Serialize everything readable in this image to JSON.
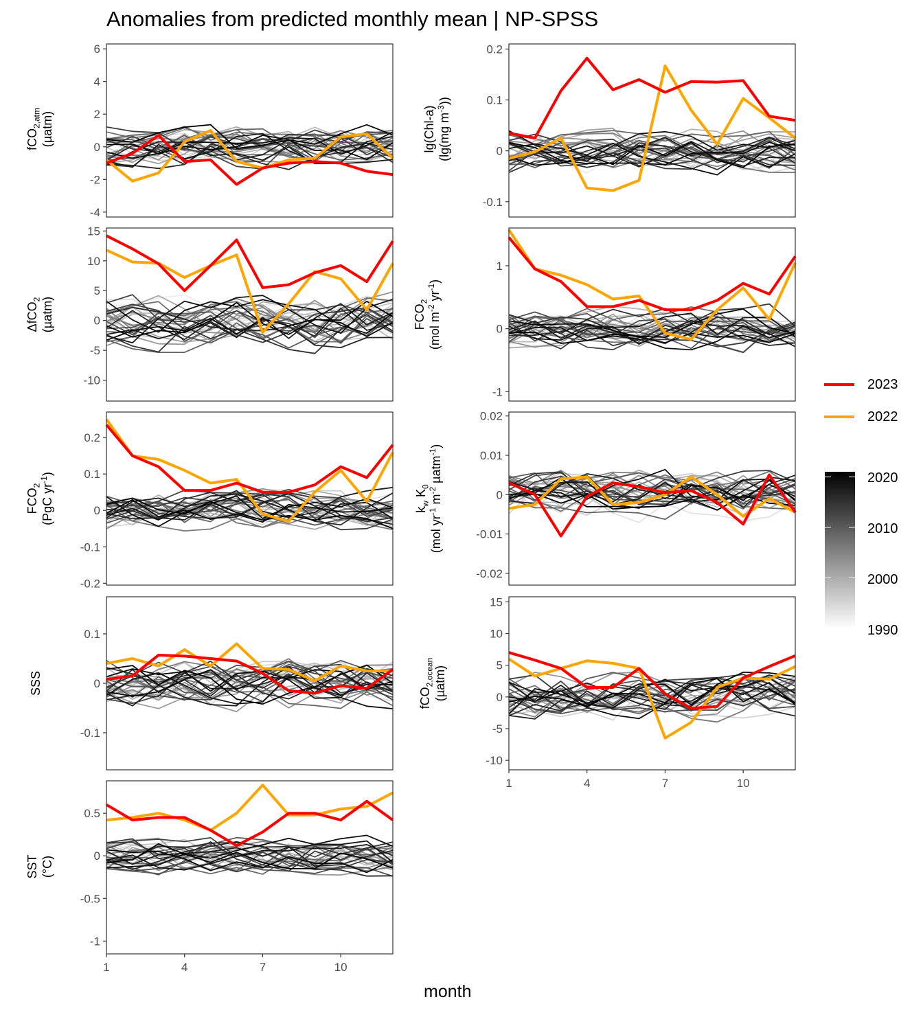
{
  "title": "Anomalies from predicted monthly mean | NP-SPSS",
  "x_title": "month",
  "x_ticks": [
    1,
    4,
    7,
    10
  ],
  "legend": {
    "highlight": [
      {
        "label": "2023",
        "color": "#ff0000"
      },
      {
        "label": "2022",
        "color": "#ffa500"
      }
    ],
    "colorbar": {
      "ticks": [
        "2020",
        "2010",
        "2000",
        "1990"
      ],
      "range": [
        1990,
        2021
      ],
      "low_color": "#ffffff",
      "high_color": "#000000"
    }
  },
  "chart_data": [
    {
      "id": "fco2_atm",
      "type": "line",
      "ylim": [
        -4.3,
        6.3
      ],
      "yticks": [
        6,
        4,
        2,
        0,
        -2,
        -4
      ],
      "x": [
        1,
        2,
        3,
        4,
        5,
        6,
        7,
        8,
        9,
        10,
        11,
        12
      ],
      "series": [
        {
          "name": "2023",
          "values": [
            -1.0,
            -0.4,
            0.7,
            -0.9,
            -0.8,
            -2.3,
            -1.3,
            -1.0,
            -0.9,
            -1.0,
            -1.5,
            -1.7
          ]
        },
        {
          "name": "2022",
          "values": [
            -0.8,
            -2.1,
            -1.6,
            0.3,
            1.0,
            -0.9,
            -1.3,
            -0.8,
            -0.7,
            0.6,
            0.8,
            -0.7
          ]
        }
      ],
      "background_amplitude": 1.3
    },
    {
      "id": "chl",
      "type": "line",
      "ylim": [
        -0.13,
        0.21
      ],
      "yticks": [
        0.2,
        0.1,
        0.0,
        -0.1
      ],
      "x": [
        1,
        2,
        3,
        4,
        5,
        6,
        7,
        8,
        9,
        10,
        11,
        12
      ],
      "series": [
        {
          "name": "2023",
          "values": [
            0.035,
            0.025,
            0.118,
            0.182,
            0.12,
            0.14,
            0.115,
            0.136,
            0.135,
            0.138,
            0.068,
            0.06
          ]
        },
        {
          "name": "2022",
          "values": [
            -0.015,
            -0.002,
            0.025,
            -0.073,
            -0.078,
            -0.058,
            0.167,
            0.08,
            0.013,
            0.103,
            0.065,
            0.025
          ]
        }
      ],
      "background_amplitude": 0.04
    },
    {
      "id": "dfco2",
      "type": "line",
      "ylim": [
        -13.5,
        15.5
      ],
      "yticks": [
        15,
        10,
        5,
        0,
        -5,
        -10
      ],
      "x": [
        1,
        2,
        3,
        4,
        5,
        6,
        7,
        8,
        9,
        10,
        11,
        12
      ],
      "series": [
        {
          "name": "2023",
          "values": [
            14.2,
            12.0,
            9.5,
            5.0,
            9.2,
            13.5,
            5.5,
            6.0,
            8.0,
            9.2,
            6.5,
            13.3
          ]
        },
        {
          "name": "2022",
          "values": [
            11.8,
            9.8,
            9.6,
            7.2,
            9.2,
            11.0,
            -2.0,
            2.8,
            8.2,
            7.0,
            1.8,
            9.6
          ]
        }
      ],
      "background_amplitude": 4.5
    },
    {
      "id": "fco2_flux",
      "type": "line",
      "ylim": [
        -1.15,
        1.6
      ],
      "yticks": [
        1,
        0,
        -1
      ],
      "x": [
        1,
        2,
        3,
        4,
        5,
        6,
        7,
        8,
        9,
        10,
        11,
        12
      ],
      "series": [
        {
          "name": "2023",
          "values": [
            1.45,
            0.95,
            0.75,
            0.35,
            0.35,
            0.45,
            0.3,
            0.3,
            0.45,
            0.72,
            0.55,
            1.15
          ]
        },
        {
          "name": "2022",
          "values": [
            1.57,
            0.95,
            0.85,
            0.7,
            0.47,
            0.52,
            -0.07,
            -0.17,
            0.3,
            0.65,
            0.15,
            1.05
          ]
        }
      ],
      "background_amplitude": 0.32
    },
    {
      "id": "fco2_pgc",
      "type": "line",
      "ylim": [
        -0.205,
        0.27
      ],
      "yticks": [
        0.2,
        0.1,
        0.0,
        -0.1,
        -0.2
      ],
      "x": [
        1,
        2,
        3,
        4,
        5,
        6,
        7,
        8,
        9,
        10,
        11,
        12
      ],
      "series": [
        {
          "name": "2023",
          "values": [
            0.235,
            0.15,
            0.12,
            0.055,
            0.055,
            0.075,
            0.05,
            0.05,
            0.07,
            0.12,
            0.09,
            0.18
          ]
        },
        {
          "name": "2022",
          "values": [
            0.25,
            0.15,
            0.14,
            0.11,
            0.075,
            0.085,
            -0.01,
            -0.03,
            0.05,
            0.11,
            0.025,
            0.16
          ]
        }
      ],
      "background_amplitude": 0.055
    },
    {
      "id": "kw_k0",
      "type": "line",
      "ylim": [
        -0.023,
        0.021
      ],
      "yticks": [
        0.02,
        0.01,
        0.0,
        -0.01,
        -0.02
      ],
      "x": [
        1,
        2,
        3,
        4,
        5,
        6,
        7,
        8,
        9,
        10,
        11,
        12
      ],
      "series": [
        {
          "name": "2023",
          "values": [
            0.003,
            0.0,
            -0.0105,
            -0.0005,
            0.003,
            0.002,
            0.0005,
            0.001,
            -0.002,
            -0.0075,
            0.005,
            -0.0045
          ]
        },
        {
          "name": "2022",
          "values": [
            -0.0035,
            -0.0025,
            0.004,
            0.0045,
            -0.0025,
            -0.002,
            0.0,
            0.0045,
            0.0,
            -0.0055,
            -0.001,
            -0.0045
          ]
        }
      ],
      "background_amplitude": 0.006
    },
    {
      "id": "sss",
      "type": "line",
      "ylim": [
        -0.175,
        0.175
      ],
      "yticks": [
        0.1,
        0.0,
        -0.1
      ],
      "x": [
        1,
        2,
        3,
        4,
        5,
        6,
        7,
        8,
        9,
        10,
        11,
        12
      ],
      "series": [
        {
          "name": "2023",
          "values": [
            0.008,
            0.015,
            0.057,
            0.055,
            0.05,
            0.045,
            0.02,
            -0.015,
            -0.02,
            -0.005,
            -0.01,
            0.028
          ]
        },
        {
          "name": "2022",
          "values": [
            0.04,
            0.05,
            0.035,
            0.068,
            0.035,
            0.08,
            0.03,
            0.028,
            0.005,
            0.035,
            0.025,
            0.025
          ]
        }
      ],
      "background_amplitude": 0.05
    },
    {
      "id": "fco2_ocean",
      "type": "line",
      "ylim": [
        -11.5,
        15.8
      ],
      "yticks": [
        15,
        10,
        5,
        0,
        -5,
        -10
      ],
      "x": [
        1,
        2,
        3,
        4,
        5,
        6,
        7,
        8,
        9,
        10,
        11,
        12
      ],
      "series": [
        {
          "name": "2023",
          "values": [
            7.0,
            5.8,
            4.5,
            1.5,
            1.5,
            4.5,
            0.5,
            -1.8,
            -1.5,
            3.0,
            4.8,
            6.5
          ]
        },
        {
          "name": "2022",
          "values": [
            6.0,
            3.3,
            4.5,
            5.7,
            5.3,
            4.5,
            -6.5,
            -4.0,
            1.5,
            3.0,
            2.8,
            4.8
          ]
        }
      ],
      "background_amplitude": 3.8
    },
    {
      "id": "sst",
      "type": "line",
      "ylim": [
        -1.15,
        0.88
      ],
      "yticks": [
        0.5,
        0.0,
        -0.5,
        -1.0
      ],
      "x": [
        1,
        2,
        3,
        4,
        5,
        6,
        7,
        8,
        9,
        10,
        11,
        12
      ],
      "series": [
        {
          "name": "2023",
          "values": [
            0.6,
            0.42,
            0.45,
            0.45,
            0.3,
            0.12,
            0.28,
            0.5,
            0.5,
            0.42,
            0.64,
            0.42
          ]
        },
        {
          "name": "2022",
          "values": [
            0.42,
            0.45,
            0.5,
            0.42,
            0.3,
            0.5,
            0.83,
            0.48,
            0.48,
            0.55,
            0.58,
            0.74
          ]
        }
      ],
      "background_amplitude": 0.22
    }
  ]
}
